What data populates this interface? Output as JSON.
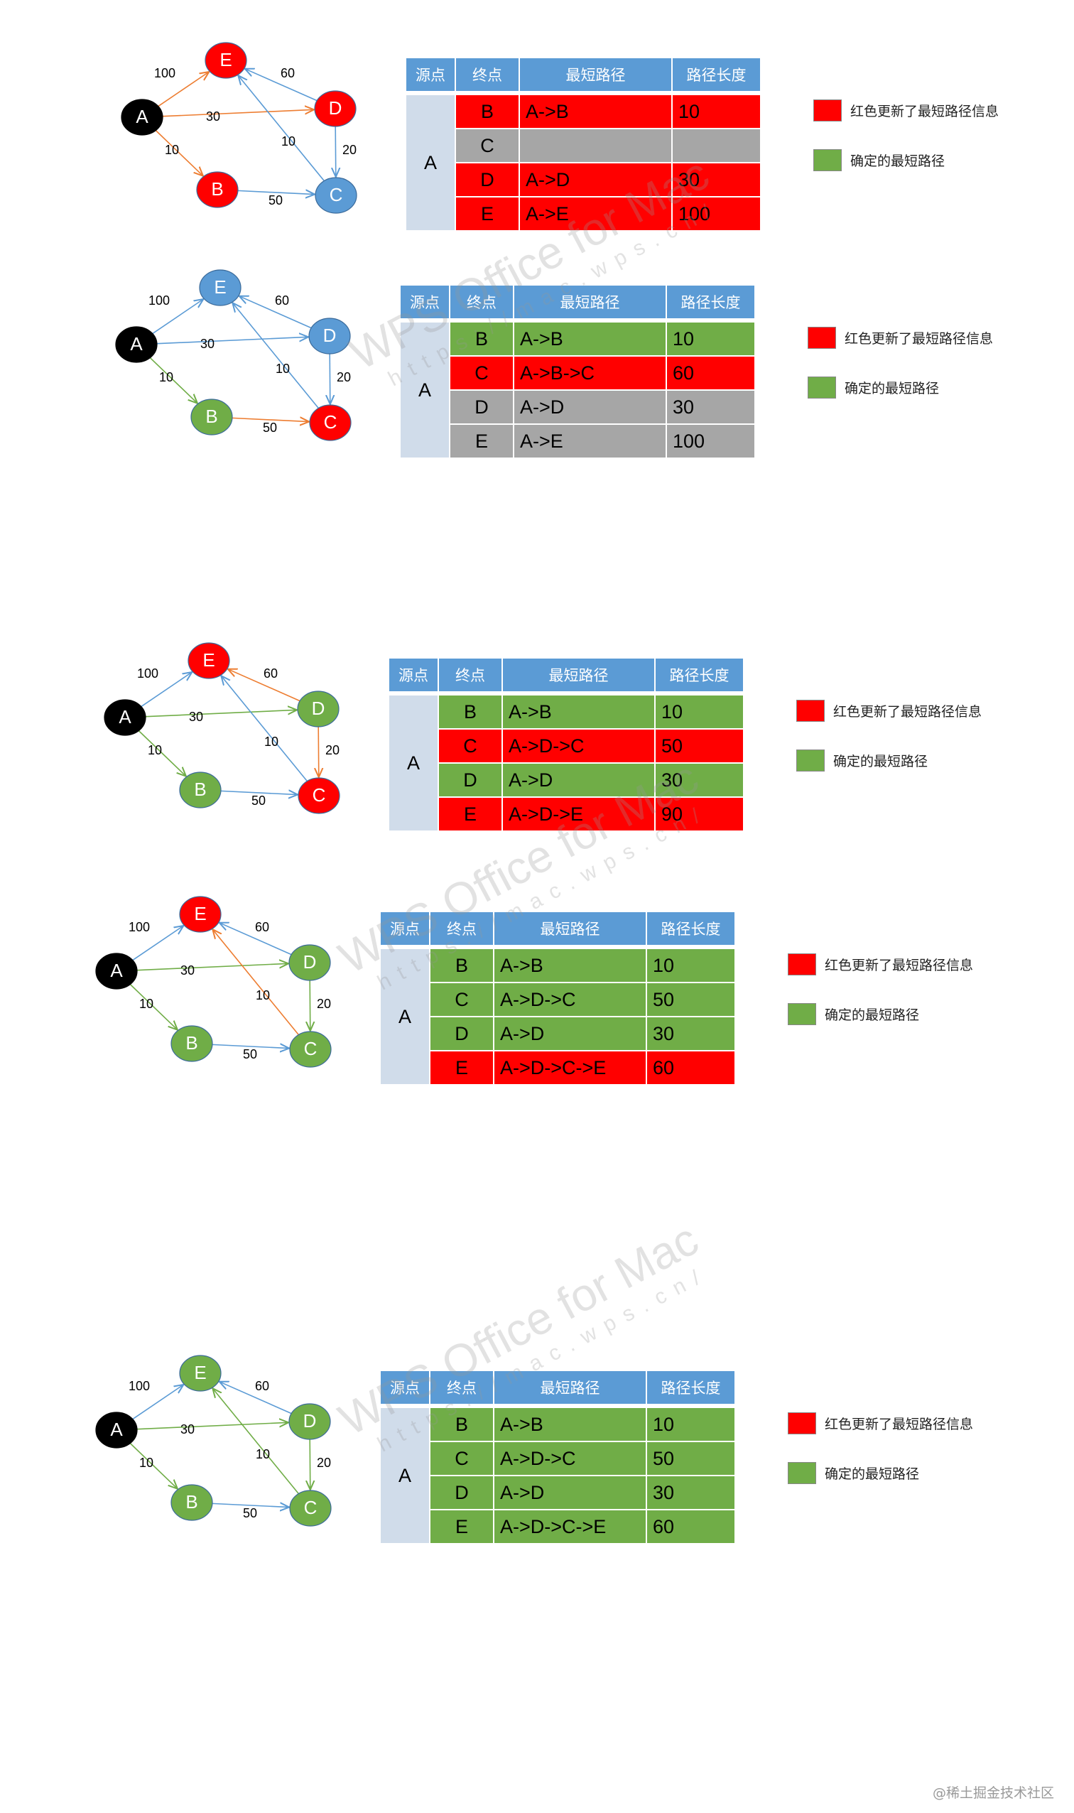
{
  "colors": {
    "red": "#ff0000",
    "green": "#70ad47",
    "blue": "#5b9bd5",
    "gray": "#a6a6a6",
    "black": "#000000",
    "header": "#5b9bd5",
    "source_cell": "#d0dcea",
    "arrow_orange": "#ed7d31",
    "arrow_green": "#70ad47",
    "arrow_blue": "#5b9bd5"
  },
  "headers": [
    "源点",
    "终点",
    "最短路径",
    "路径长度"
  ],
  "legend": {
    "red_label": "红色更新了最短路径信息",
    "green_label": "确定的最短路径"
  },
  "watermark": {
    "line1": "WPS Office for Mac",
    "line2": "https://mac.wps.cn/"
  },
  "footer": "@稀土掘金技术社区",
  "edge_weights": {
    "AE": "100",
    "AD": "30",
    "AB": "10",
    "DE": "60",
    "CE": "10",
    "DC": "20",
    "BC": "50"
  },
  "panels": [
    {
      "node_colors": {
        "A": "black",
        "B": "red",
        "C": "blue",
        "D": "red",
        "E": "red"
      },
      "edge_colors": {
        "AE": "orange",
        "AD": "orange",
        "AB": "orange",
        "DE": "blue",
        "CE": "blue",
        "DC": "blue",
        "BC": "blue"
      },
      "source": "A",
      "rows": [
        {
          "dest": "B",
          "path": "A->B",
          "len": "10",
          "state": "red"
        },
        {
          "dest": "C",
          "path": "",
          "len": "",
          "state": "gray"
        },
        {
          "dest": "D",
          "path": "A->D",
          "len": "30",
          "state": "red"
        },
        {
          "dest": "E",
          "path": "A->E",
          "len": "100",
          "state": "red"
        }
      ]
    },
    {
      "node_colors": {
        "A": "black",
        "B": "green",
        "C": "red",
        "D": "blue",
        "E": "blue"
      },
      "edge_colors": {
        "AE": "blue",
        "AD": "blue",
        "AB": "green",
        "DE": "blue",
        "CE": "blue",
        "DC": "blue",
        "BC": "orange"
      },
      "source": "A",
      "rows": [
        {
          "dest": "B",
          "path": "A->B",
          "len": "10",
          "state": "green"
        },
        {
          "dest": "C",
          "path": "A->B->C",
          "len": "60",
          "state": "red"
        },
        {
          "dest": "D",
          "path": "A->D",
          "len": "30",
          "state": "gray"
        },
        {
          "dest": "E",
          "path": "A->E",
          "len": "100",
          "state": "gray"
        }
      ]
    },
    {
      "node_colors": {
        "A": "black",
        "B": "green",
        "C": "red",
        "D": "green",
        "E": "red"
      },
      "edge_colors": {
        "AE": "blue",
        "AD": "green",
        "AB": "green",
        "DE": "orange",
        "CE": "blue",
        "DC": "orange",
        "BC": "blue"
      },
      "source": "A",
      "rows": [
        {
          "dest": "B",
          "path": "A->B",
          "len": "10",
          "state": "green"
        },
        {
          "dest": "C",
          "path": "A->D->C",
          "len": "50",
          "state": "red"
        },
        {
          "dest": "D",
          "path": "A->D",
          "len": "30",
          "state": "green"
        },
        {
          "dest": "E",
          "path": "A->D->E",
          "len": "90",
          "state": "red"
        }
      ]
    },
    {
      "node_colors": {
        "A": "black",
        "B": "green",
        "C": "green",
        "D": "green",
        "E": "red"
      },
      "edge_colors": {
        "AE": "blue",
        "AD": "green",
        "AB": "green",
        "DE": "blue",
        "CE": "orange",
        "DC": "green",
        "BC": "blue"
      },
      "source": "A",
      "rows": [
        {
          "dest": "B",
          "path": "A->B",
          "len": "10",
          "state": "green"
        },
        {
          "dest": "C",
          "path": "A->D->C",
          "len": "50",
          "state": "green"
        },
        {
          "dest": "D",
          "path": "A->D",
          "len": "30",
          "state": "green"
        },
        {
          "dest": "E",
          "path": "A->D->C->E",
          "len": "60",
          "state": "red"
        }
      ]
    },
    {
      "node_colors": {
        "A": "black",
        "B": "green",
        "C": "green",
        "D": "green",
        "E": "green"
      },
      "edge_colors": {
        "AE": "blue",
        "AD": "green",
        "AB": "green",
        "DE": "blue",
        "CE": "green",
        "DC": "green",
        "BC": "blue"
      },
      "source": "A",
      "rows": [
        {
          "dest": "B",
          "path": "A->B",
          "len": "10",
          "state": "green"
        },
        {
          "dest": "C",
          "path": "A->D->C",
          "len": "50",
          "state": "green"
        },
        {
          "dest": "D",
          "path": "A->D",
          "len": "30",
          "state": "green"
        },
        {
          "dest": "E",
          "path": "A->D->C->E",
          "len": "60",
          "state": "green"
        }
      ]
    }
  ]
}
